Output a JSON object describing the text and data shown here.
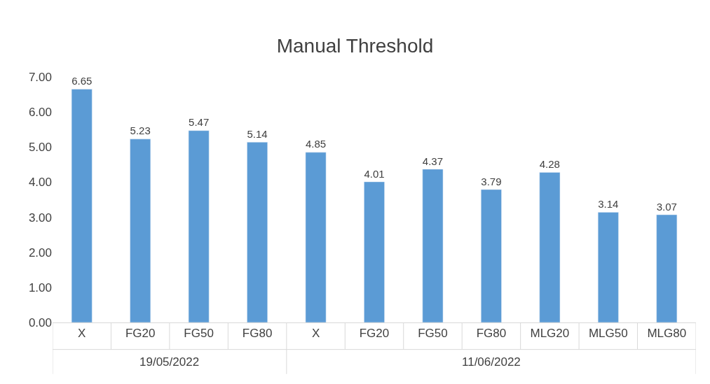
{
  "chart_data": {
    "type": "bar",
    "title": "Manual Threshold",
    "categories": [
      "X",
      "FG20",
      "FG50",
      "FG80",
      "X",
      "FG20",
      "FG50",
      "FG80",
      "MLG20",
      "MLG50",
      "MLG80"
    ],
    "values": [
      6.65,
      5.23,
      5.47,
      5.14,
      4.85,
      4.01,
      4.37,
      3.79,
      4.28,
      3.14,
      3.07
    ],
    "color": "#5b9bd5",
    "ylim": [
      0,
      7
    ],
    "yticks": [
      {
        "value": 0,
        "label": "0.00"
      },
      {
        "value": 1,
        "label": "1.00"
      },
      {
        "value": 2,
        "label": "2.00"
      },
      {
        "value": 3,
        "label": "3.00"
      },
      {
        "value": 4,
        "label": "4.00"
      },
      {
        "value": 5,
        "label": "5.00"
      },
      {
        "value": 6,
        "label": "6.00"
      },
      {
        "value": 7,
        "label": "7.00"
      }
    ],
    "grid": false,
    "data_labels": true,
    "annotations": [
      "19/05/2022",
      "11/06/2022"
    ]
  }
}
